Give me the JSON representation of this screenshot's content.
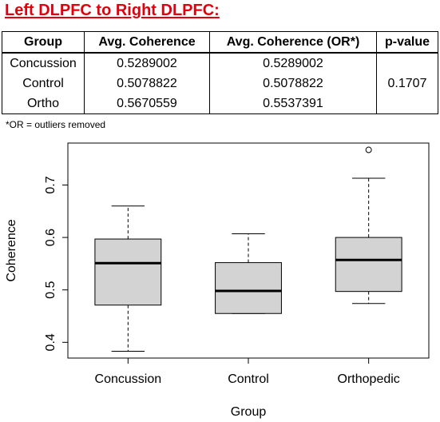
{
  "title": "Left DLPFC to Right DLPFC:",
  "table": {
    "headers": [
      "Group",
      "Avg. Coherence",
      "Avg. Coherence (OR*)",
      "p-value"
    ],
    "rows": [
      {
        "group": "Concussion",
        "avg": "0.5289002",
        "avg_or": "0.5289002"
      },
      {
        "group": "Control",
        "avg": "0.5078822",
        "avg_or": "0.5078822"
      },
      {
        "group": "Ortho",
        "avg": "0.5670559",
        "avg_or": "0.5537391"
      }
    ],
    "p_value": "0.1707"
  },
  "footnote": "*OR = outliers removed",
  "chart_data": {
    "type": "boxplot",
    "xlabel": "Group",
    "ylabel": "Coherence",
    "categories": [
      "Concussion",
      "Control",
      "Orthopedic"
    ],
    "boxes": [
      {
        "name": "Concussion",
        "whisker_low": 0.383,
        "q1": 0.471,
        "median": 0.551,
        "q3": 0.597,
        "whisker_high": 0.66,
        "outliers": []
      },
      {
        "name": "Control",
        "whisker_low": 0.455,
        "q1": 0.455,
        "median": 0.498,
        "q3": 0.552,
        "whisker_high": 0.607,
        "outliers": []
      },
      {
        "name": "Orthopedic",
        "whisker_low": 0.474,
        "q1": 0.497,
        "median": 0.557,
        "q3": 0.6,
        "whisker_high": 0.713,
        "outliers": [
          0.767
        ]
      }
    ],
    "yticks": [
      0.4,
      0.5,
      0.6,
      0.7
    ],
    "ytick_labels": [
      "0.4",
      "0.5",
      "0.6",
      "0.7"
    ],
    "ylim": [
      0.37,
      0.78
    ],
    "colors": {
      "box_fill": "#d3d3d3",
      "stroke": "#000000"
    }
  }
}
